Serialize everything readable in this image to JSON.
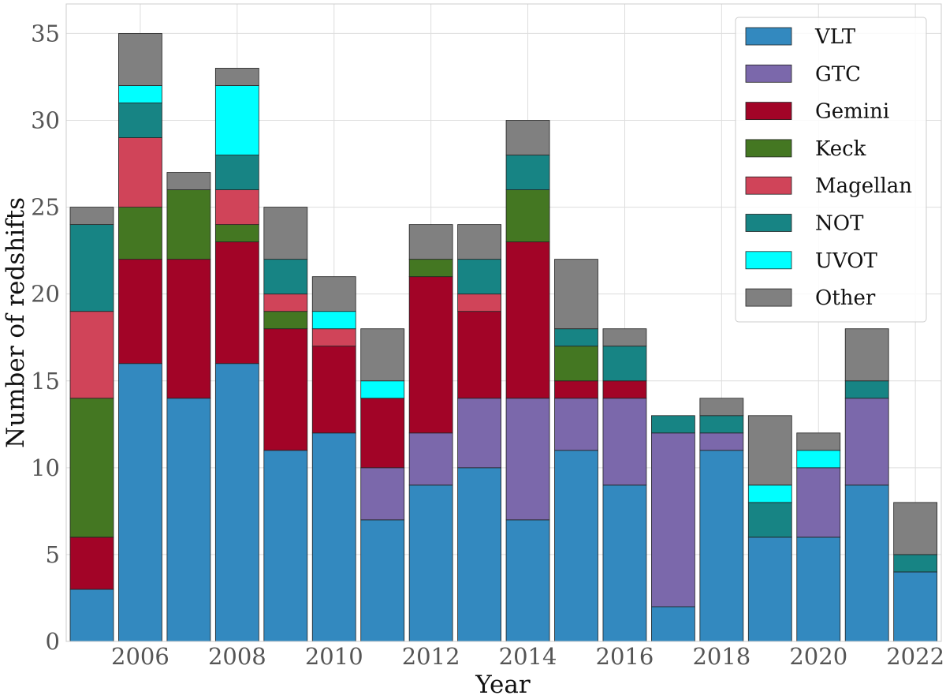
{
  "chart_data": {
    "type": "bar",
    "stacked": true,
    "title": "",
    "xlabel": "Year",
    "ylabel": "Number of redshifts",
    "ylim": [
      0,
      36.7
    ],
    "yticks": [
      0,
      5,
      10,
      15,
      20,
      25,
      30,
      35
    ],
    "xticks": [
      "2006",
      "2008",
      "2010",
      "2012",
      "2014",
      "2016",
      "2018",
      "2020",
      "2022"
    ],
    "grid": true,
    "legend_position": "top-right",
    "categories": [
      2005,
      2006,
      2007,
      2008,
      2009,
      2010,
      2011,
      2012,
      2013,
      2014,
      2015,
      2016,
      2017,
      2018,
      2019,
      2020,
      2021,
      2022
    ],
    "series": [
      {
        "name": "VLT",
        "color": "#3389BF",
        "values": [
          3,
          16,
          14,
          16,
          11,
          12,
          7,
          9,
          10,
          7,
          11,
          9,
          2,
          11,
          6,
          6,
          9,
          4
        ]
      },
      {
        "name": "GTC",
        "color": "#7B68AB",
        "values": [
          0,
          0,
          0,
          0,
          0,
          0,
          3,
          3,
          4,
          7,
          3,
          5,
          10,
          1,
          0,
          4,
          5,
          0
        ]
      },
      {
        "name": "Gemini",
        "color": "#A20427",
        "values": [
          3,
          6,
          8,
          7,
          7,
          5,
          4,
          9,
          5,
          9,
          1,
          1,
          0,
          0,
          0,
          0,
          0,
          0
        ]
      },
      {
        "name": "Keck",
        "color": "#447722",
        "values": [
          8,
          3,
          4,
          1,
          1,
          0,
          0,
          1,
          0,
          3,
          2,
          0,
          0,
          0,
          0,
          0,
          0,
          0
        ]
      },
      {
        "name": "Magellan",
        "color": "#D04459",
        "values": [
          5,
          4,
          0,
          2,
          1,
          1,
          0,
          0,
          1,
          0,
          0,
          0,
          0,
          0,
          0,
          0,
          0,
          0
        ]
      },
      {
        "name": "NOT",
        "color": "#178484",
        "values": [
          5,
          2,
          0,
          2,
          2,
          0,
          0,
          0,
          2,
          2,
          1,
          2,
          1,
          1,
          2,
          0,
          1,
          1
        ]
      },
      {
        "name": "UVOT",
        "color": "#00FFFF",
        "values": [
          0,
          1,
          0,
          4,
          0,
          1,
          1,
          0,
          0,
          0,
          0,
          0,
          0,
          0,
          1,
          1,
          0,
          0
        ]
      },
      {
        "name": "Other",
        "color": "#808080",
        "values": [
          1,
          3,
          1,
          1,
          3,
          2,
          3,
          2,
          2,
          2,
          4,
          1,
          0,
          1,
          4,
          1,
          3,
          3
        ]
      }
    ]
  }
}
